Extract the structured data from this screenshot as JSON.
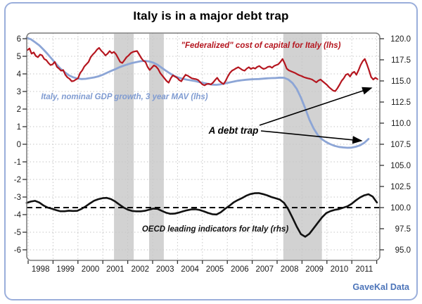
{
  "title": "Italy is in a major debt trap",
  "source": "GaveKal Data",
  "annotations": {
    "red_label": "\"Federalized\" cost of capital for Italy (lhs)",
    "blue_label": "Italy, nominal GDP growth, 3 year MAV (lhs)",
    "black_label": "OECD leading indicators for Italy (rhs)",
    "debt_trap_label": "A debt trap"
  },
  "colors": {
    "red_line": "#b5161f",
    "blue_line": "#8ca5d6",
    "blue_text": "#7f9bd1",
    "black_line": "#111111",
    "band": "#d2d2d2",
    "grid": "#c6c6c6",
    "plot_border": "#7a7a7a",
    "frame_border": "#9aaedb",
    "source_text": "#4c74b9"
  },
  "chart_data": {
    "type": "line",
    "title": "Italy is in a major debt trap",
    "x_axis": {
      "min": 1997.94,
      "max": 2012.12,
      "tick_years": [
        1998,
        1999,
        2000,
        2001,
        2002,
        2003,
        2004,
        2005,
        2006,
        2007,
        2008,
        2009,
        2010,
        2011,
        2012
      ],
      "year_labels": [
        "1998",
        "1999",
        "2000",
        "2001",
        "2002",
        "2003",
        "2004",
        "2005",
        "2006",
        "2007",
        "2008",
        "2009",
        "2010",
        "2011"
      ]
    },
    "y_left": {
      "min": -6,
      "max": 6,
      "ticks": [
        6,
        5,
        4,
        3,
        2,
        1,
        0,
        -1,
        -2,
        -3,
        -4,
        -5,
        -6
      ],
      "grid": true
    },
    "y_right": {
      "min": 95,
      "max": 120,
      "ticks": [
        120,
        117.5,
        115,
        112.5,
        110,
        107.5,
        105,
        102.5,
        100,
        97.5,
        95
      ]
    },
    "reference_line": {
      "axis": "right",
      "value": 100,
      "style": "dashed"
    },
    "recession_bands": [
      [
        2001.45,
        2002.24
      ],
      [
        2002.86,
        2003.45
      ],
      [
        2008.25,
        2009.8
      ]
    ],
    "series": [
      {
        "name": "\"Federalized\" cost of capital for Italy",
        "axis": "left",
        "color": "#b5161f",
        "width": 2.2,
        "x_start": 1997.97,
        "x_step": 0.0847,
        "values": [
          5.35,
          5.45,
          5.15,
          5.22,
          5.02,
          4.95,
          5.1,
          5.05,
          4.85,
          4.78,
          4.62,
          4.5,
          4.55,
          4.68,
          4.4,
          4.3,
          4.18,
          4.22,
          3.95,
          3.8,
          3.72,
          3.58,
          3.6,
          3.68,
          3.75,
          4.05,
          4.2,
          4.42,
          4.55,
          4.68,
          4.95,
          5.1,
          5.22,
          5.38,
          5.48,
          5.32,
          5.2,
          5.05,
          5.15,
          5.3,
          5.18,
          5.25,
          5.12,
          4.9,
          4.68,
          4.62,
          4.78,
          4.95,
          5.05,
          5.18,
          5.25,
          5.28,
          5.3,
          5.1,
          4.9,
          4.75,
          4.68,
          4.4,
          4.22,
          4.35,
          4.48,
          4.42,
          4.28,
          4.05,
          3.9,
          3.75,
          3.6,
          3.5,
          3.75,
          3.92,
          3.85,
          3.78,
          3.65,
          3.58,
          3.78,
          3.95,
          3.9,
          3.82,
          3.75,
          3.72,
          3.7,
          3.65,
          3.52,
          3.4,
          3.35,
          3.42,
          3.44,
          3.4,
          3.5,
          3.65,
          3.78,
          3.6,
          3.5,
          3.42,
          3.6,
          3.85,
          4.05,
          4.18,
          4.25,
          4.32,
          4.38,
          4.3,
          4.22,
          4.18,
          4.3,
          4.38,
          4.28,
          4.35,
          4.3,
          4.4,
          4.45,
          4.35,
          4.28,
          4.32,
          4.4,
          4.42,
          4.35,
          4.45,
          4.5,
          4.55,
          4.68,
          4.85,
          4.6,
          4.3,
          4.2,
          4.15,
          4.1,
          4.05,
          3.98,
          3.92,
          3.88,
          3.82,
          3.78,
          3.75,
          3.72,
          3.68,
          3.6,
          3.52,
          3.62,
          3.68,
          3.58,
          3.48,
          3.38,
          3.25,
          3.15,
          3.05,
          3.02,
          3.18,
          3.38,
          3.6,
          3.75,
          3.95,
          4.0,
          3.85,
          4.05,
          4.12,
          3.95,
          4.2,
          4.5,
          4.72,
          4.85,
          4.55,
          4.2,
          3.82,
          3.68,
          3.78,
          3.7
        ]
      },
      {
        "name": "Italy, nominal GDP growth, 3 year MAV",
        "axis": "left",
        "color": "#8ca5d6",
        "width": 2.8,
        "x_start": 1997.94,
        "x_step": 0.1695,
        "values": [
          6.05,
          5.97,
          5.8,
          5.62,
          5.38,
          5.12,
          4.84,
          4.57,
          4.3,
          4.1,
          3.92,
          3.81,
          3.74,
          3.71,
          3.72,
          3.76,
          3.8,
          3.86,
          3.95,
          4.06,
          4.17,
          4.27,
          4.38,
          4.47,
          4.55,
          4.62,
          4.67,
          4.72,
          4.74,
          4.71,
          4.64,
          4.52,
          4.35,
          4.18,
          4.02,
          3.88,
          3.79,
          3.72,
          3.67,
          3.63,
          3.59,
          3.53,
          3.48,
          3.43,
          3.39,
          3.38,
          3.41,
          3.46,
          3.51,
          3.56,
          3.61,
          3.64,
          3.67,
          3.69,
          3.7,
          3.71,
          3.73,
          3.75,
          3.76,
          3.77,
          3.79,
          3.78,
          3.68,
          3.48,
          3.15,
          2.65,
          2.05,
          1.4,
          0.9,
          0.52,
          0.28,
          0.12,
          0.0,
          -0.09,
          -0.15,
          -0.18,
          -0.2,
          -0.19,
          -0.14,
          -0.06,
          0.08,
          0.3
        ]
      },
      {
        "name": "OECD leading indicators for Italy",
        "axis": "right",
        "color": "#111111",
        "width": 2.6,
        "x_start": 1997.94,
        "x_step": 0.1695,
        "values": [
          100.55,
          100.72,
          100.8,
          100.6,
          100.25,
          100.0,
          99.87,
          99.7,
          99.57,
          99.57,
          99.63,
          99.6,
          99.62,
          99.85,
          100.15,
          100.5,
          100.82,
          101.0,
          101.12,
          101.15,
          101.0,
          100.72,
          100.35,
          100.0,
          99.75,
          99.6,
          99.56,
          99.56,
          99.62,
          99.75,
          99.88,
          99.85,
          99.62,
          99.4,
          99.27,
          99.28,
          99.4,
          99.55,
          99.68,
          99.78,
          99.8,
          99.72,
          99.55,
          99.37,
          99.22,
          99.18,
          99.45,
          99.85,
          100.2,
          100.6,
          100.88,
          101.12,
          101.4,
          101.6,
          101.7,
          101.72,
          101.6,
          101.45,
          101.25,
          101.1,
          100.95,
          100.55,
          99.8,
          98.8,
          97.75,
          96.85,
          96.55,
          96.9,
          97.55,
          98.2,
          98.85,
          99.35,
          99.58,
          99.73,
          99.82,
          99.98,
          100.15,
          100.45,
          100.85,
          101.2,
          101.45,
          101.58,
          101.3,
          100.6
        ]
      }
    ]
  }
}
